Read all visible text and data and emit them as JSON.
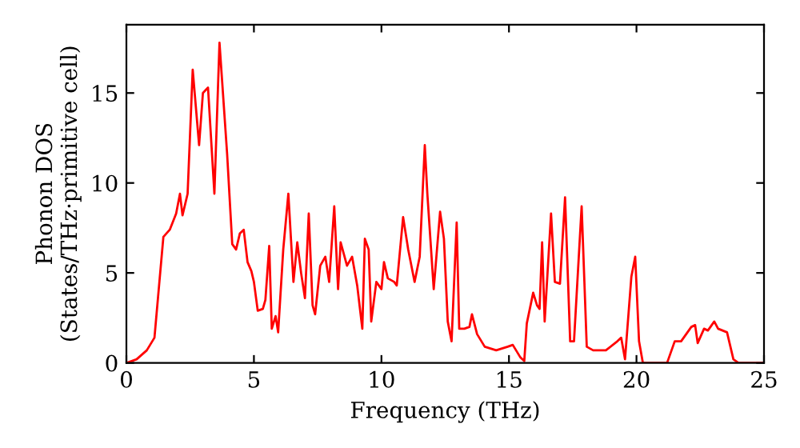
{
  "chart_data": {
    "type": "line",
    "xlabel": "Frequency (THz)",
    "ylabel": "Phonon DOS\n(States/THz·primitive cell)",
    "x": [
      0,
      0.4,
      0.8,
      1.1,
      1.25,
      1.45,
      1.7,
      1.95,
      2.1,
      2.2,
      2.4,
      2.6,
      2.85,
      3.0,
      3.2,
      3.45,
      3.65,
      3.95,
      4.15,
      4.3,
      4.45,
      4.6,
      4.75,
      4.9,
      5.0,
      5.15,
      5.35,
      5.45,
      5.6,
      5.7,
      5.85,
      5.95,
      6.15,
      6.35,
      6.55,
      6.7,
      6.85,
      7.0,
      7.15,
      7.3,
      7.4,
      7.6,
      7.8,
      7.95,
      8.15,
      8.3,
      8.4,
      8.65,
      8.85,
      9.05,
      9.25,
      9.35,
      9.5,
      9.6,
      9.8,
      10.0,
      10.1,
      10.25,
      10.5,
      10.6,
      10.85,
      11.05,
      11.3,
      11.5,
      11.7,
      11.8,
      12.05,
      12.3,
      12.45,
      12.6,
      12.75,
      12.95,
      13.05,
      13.25,
      13.45,
      13.55,
      13.75,
      14.05,
      14.5,
      14.95,
      15.15,
      15.45,
      15.6,
      15.7,
      15.95,
      16.1,
      16.2,
      16.3,
      16.4,
      16.65,
      16.8,
      17.0,
      17.2,
      17.4,
      17.55,
      17.85,
      18.05,
      18.3,
      18.8,
      19.25,
      19.4,
      19.55,
      19.8,
      19.95,
      20.1,
      20.25,
      21.2,
      21.5,
      21.75,
      22.0,
      22.15,
      22.3,
      22.4,
      22.65,
      22.8,
      23.05,
      23.2,
      23.55,
      23.8,
      24.0,
      25.0
    ],
    "series": [
      {
        "color": "#ff0000",
        "values": [
          0,
          0.2,
          0.7,
          1.4,
          3.8,
          7.0,
          7.4,
          8.3,
          9.4,
          8.2,
          9.4,
          16.3,
          12.1,
          15.0,
          15.3,
          9.4,
          17.8,
          11.6,
          6.6,
          6.3,
          7.2,
          7.4,
          5.6,
          5.1,
          4.5,
          2.9,
          3.0,
          3.5,
          6.5,
          1.9,
          2.6,
          1.7,
          6.3,
          9.4,
          4.5,
          6.7,
          5.0,
          3.6,
          8.3,
          3.2,
          2.7,
          5.4,
          5.9,
          4.5,
          8.7,
          4.1,
          6.7,
          5.4,
          5.9,
          4.3,
          1.9,
          6.9,
          6.3,
          2.3,
          4.5,
          4.1,
          5.6,
          4.7,
          4.5,
          4.3,
          8.1,
          6.3,
          4.5,
          5.9,
          12.1,
          9.4,
          4.1,
          8.4,
          6.9,
          2.3,
          1.2,
          7.8,
          1.9,
          1.9,
          2.0,
          2.7,
          1.6,
          0.9,
          0.7,
          0.9,
          1.0,
          0.3,
          0.1,
          2.2,
          3.9,
          3.2,
          3.0,
          6.7,
          2.3,
          8.3,
          4.5,
          4.4,
          9.2,
          1.2,
          1.2,
          8.7,
          0.9,
          0.7,
          0.7,
          1.2,
          1.4,
          0.2,
          4.8,
          5.9,
          1.2,
          0,
          0,
          1.2,
          1.2,
          1.7,
          2.0,
          2.1,
          1.1,
          1.9,
          1.8,
          2.3,
          1.9,
          1.7,
          0.2,
          0,
          0
        ]
      }
    ],
    "xlim": [
      0,
      25
    ],
    "ylim": [
      0,
      18.8
    ],
    "xticks": [
      0,
      5,
      10,
      15,
      20,
      25
    ],
    "yticks": [
      0,
      5,
      10,
      15
    ],
    "grid": false,
    "legend": false,
    "marker": "none",
    "line_style": "solid"
  }
}
